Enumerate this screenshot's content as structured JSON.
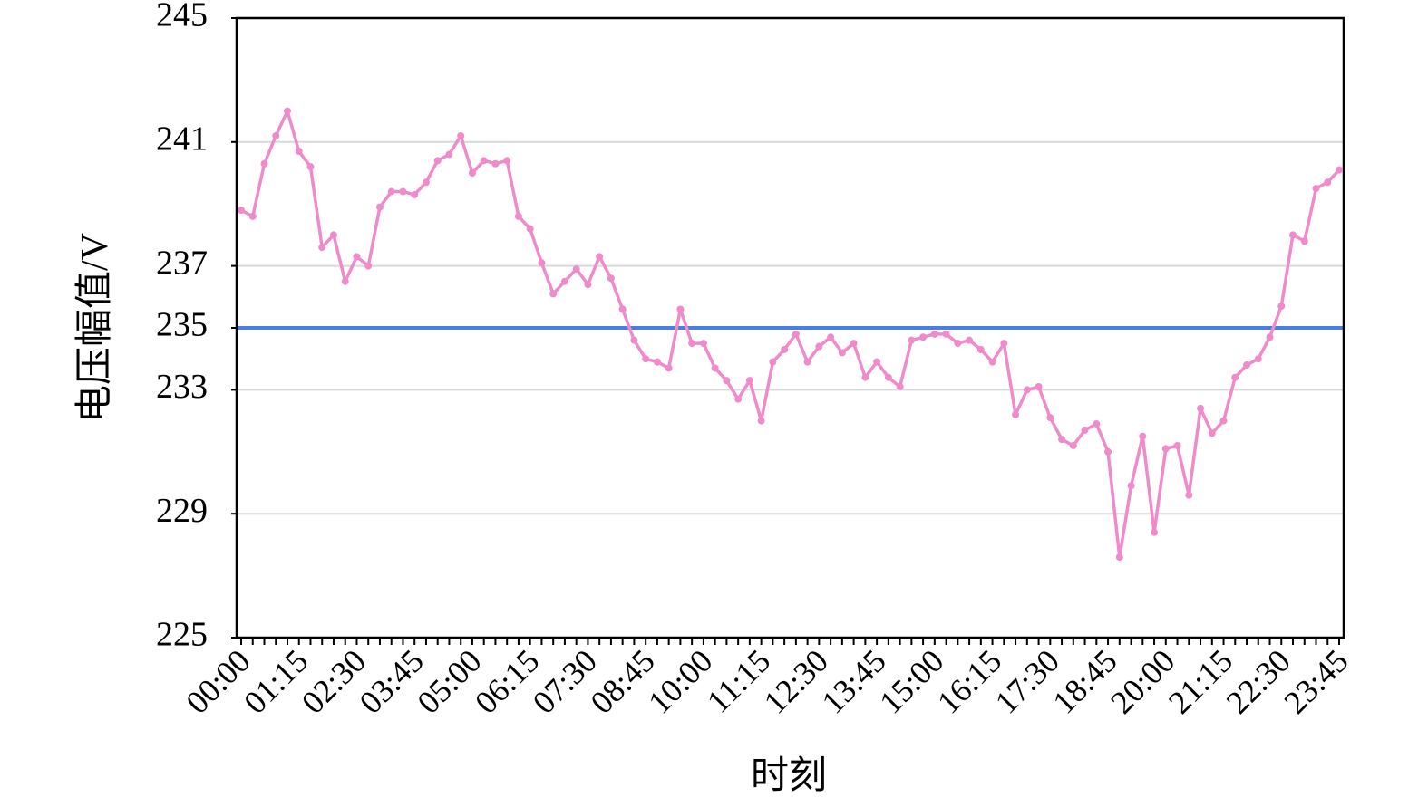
{
  "chart_data": {
    "type": "line",
    "x_label": "时刻",
    "y_label": "电压幅值/V",
    "categories": [
      "00:00",
      null,
      null,
      null,
      null,
      "01:15",
      null,
      null,
      null,
      null,
      "02:30",
      null,
      null,
      null,
      null,
      "03:45",
      null,
      null,
      null,
      null,
      "05:00",
      null,
      null,
      null,
      null,
      "06:15",
      null,
      null,
      null,
      null,
      "07:30",
      null,
      null,
      null,
      null,
      "08:45",
      null,
      null,
      null,
      null,
      "10:00",
      null,
      null,
      null,
      null,
      "11:15",
      null,
      null,
      null,
      null,
      "12:30",
      null,
      null,
      null,
      null,
      "13:45",
      null,
      null,
      null,
      null,
      "15:00",
      null,
      null,
      null,
      null,
      "16:15",
      null,
      null,
      null,
      null,
      "17:30",
      null,
      null,
      null,
      null,
      "18:45",
      null,
      null,
      null,
      null,
      "20:00",
      null,
      null,
      null,
      null,
      "21:15",
      null,
      null,
      null,
      null,
      "22:30",
      null,
      null,
      null,
      null,
      "23:45"
    ],
    "series": [
      {
        "color": "#ef8bcb",
        "values": [
          238.8,
          238.6,
          240.3,
          241.2,
          242.0,
          240.7,
          240.2,
          237.6,
          238.0,
          236.5,
          237.3,
          237.0,
          238.9,
          239.4,
          239.4,
          239.3,
          239.7,
          240.4,
          240.6,
          241.2,
          240.0,
          240.4,
          240.3,
          240.4,
          238.6,
          238.2,
          237.1,
          236.1,
          236.5,
          236.9,
          236.4,
          237.3,
          236.6,
          235.6,
          234.6,
          234.0,
          233.9,
          233.7,
          235.6,
          234.5,
          234.5,
          233.7,
          233.3,
          232.7,
          233.3,
          232.0,
          233.9,
          234.3,
          234.8,
          233.9,
          234.4,
          234.7,
          234.2,
          234.5,
          233.4,
          233.9,
          233.4,
          233.1,
          234.6,
          234.7,
          234.8,
          234.8,
          234.5,
          234.6,
          234.3,
          233.9,
          234.5,
          232.2,
          233.0,
          233.1,
          232.1,
          231.4,
          231.2,
          231.7,
          231.9,
          231.0,
          227.6,
          229.9,
          231.5,
          228.4,
          231.1,
          231.2,
          229.6,
          232.4,
          231.6,
          232.0,
          233.4,
          233.8,
          234.0,
          234.7,
          235.7,
          238.0,
          237.8,
          239.5,
          239.7,
          240.1
        ]
      }
    ],
    "reference_line": {
      "y": 235,
      "color": "#4a7de6"
    },
    "ylim": [
      225,
      245
    ],
    "yticks": [
      225,
      229,
      233,
      235,
      237,
      241,
      245
    ],
    "grid": true
  }
}
